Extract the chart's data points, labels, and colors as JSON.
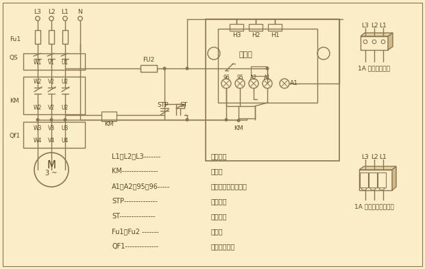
{
  "bg": "#faeec8",
  "lc": "#8B7355",
  "fc": "#5a4520",
  "legend_items": [
    [
      "L1、L2、L3-------",
      "三相电源"
    ],
    [
      "KM---------------",
      "接触器"
    ],
    [
      "A1、A2、95、96-----",
      "保护器接线端子号码"
    ],
    [
      "STP--------------",
      "停止按鈕"
    ],
    [
      "ST---------------",
      "启动按鈕"
    ],
    [
      "Fu1、Fu2 -------",
      "燔断器"
    ],
    [
      "QF1--------------",
      "电动机保护器"
    ]
  ]
}
